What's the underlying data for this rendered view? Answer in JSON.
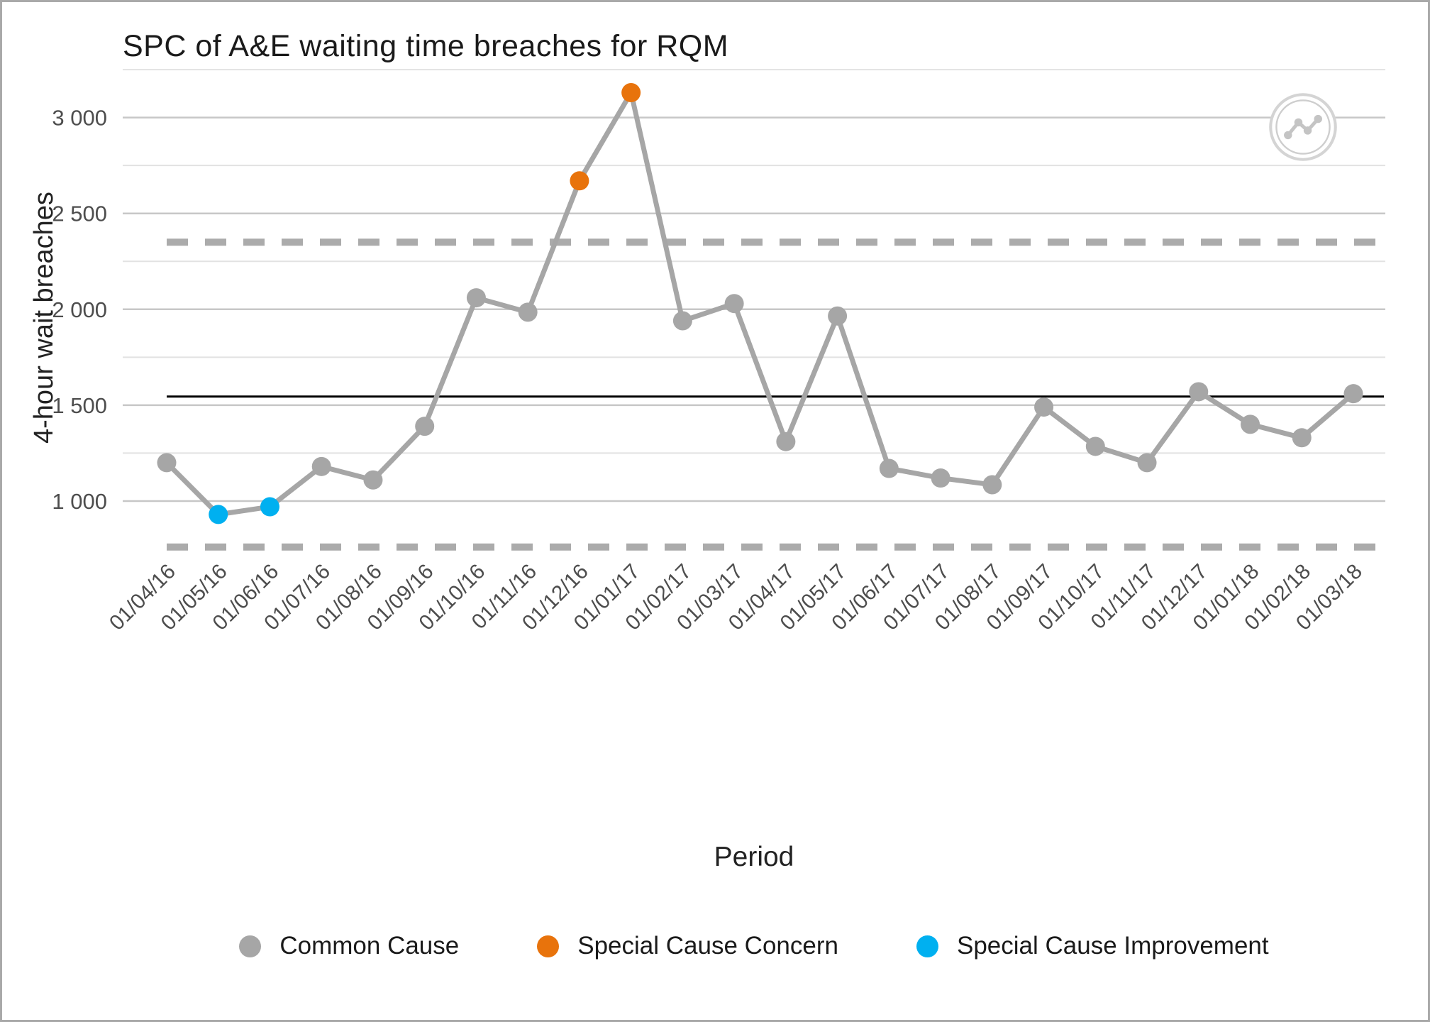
{
  "window": {
    "background": "#ffffff",
    "border_color": "#a9a9a9"
  },
  "chart_data": {
    "type": "line",
    "subtype": "spc-control-chart",
    "title": "SPC of A&E waiting time breaches for RQM",
    "xlabel": "Period",
    "ylabel": "4-hour wait breaches",
    "ylim": [
      700,
      3280
    ],
    "yticks": [
      1000,
      1500,
      2000,
      2500,
      3000
    ],
    "ytick_labels": [
      "1 000",
      "1 500",
      "2 000",
      "2 500",
      "3 000"
    ],
    "yticks_minor": [
      1250,
      1750,
      2250,
      2750,
      3250
    ],
    "grid": true,
    "legend_position": "bottom",
    "categories": [
      "01/04/16",
      "01/05/16",
      "01/06/16",
      "01/07/16",
      "01/08/16",
      "01/09/16",
      "01/10/16",
      "01/11/16",
      "01/12/16",
      "01/01/17",
      "01/02/17",
      "01/03/17",
      "01/04/17",
      "01/05/17",
      "01/06/17",
      "01/07/17",
      "01/08/17",
      "01/09/17",
      "01/10/17",
      "01/11/17",
      "01/12/17",
      "01/01/18",
      "01/02/18",
      "01/03/18"
    ],
    "values": [
      1200,
      930,
      970,
      1180,
      1110,
      1390,
      2060,
      1985,
      2670,
      3130,
      1940,
      2030,
      1310,
      1965,
      1170,
      1120,
      1085,
      1490,
      1285,
      1200,
      1570,
      1400,
      1330,
      1560
    ],
    "point_types": [
      "common",
      "improvement",
      "improvement",
      "common",
      "common",
      "common",
      "common",
      "common",
      "concern",
      "concern",
      "common",
      "common",
      "common",
      "common",
      "common",
      "common",
      "common",
      "common",
      "common",
      "common",
      "common",
      "common",
      "common",
      "common"
    ],
    "center_line": 1545,
    "upper_control_limit": 2350,
    "lower_control_limit": 760,
    "legend": [
      {
        "label": "Common Cause",
        "type": "common",
        "color": "#a6a6a6"
      },
      {
        "label": "Special Cause Concern",
        "type": "concern",
        "color": "#e8730c"
      },
      {
        "label": "Special Cause Improvement",
        "type": "improvement",
        "color": "#00b0f0"
      }
    ],
    "colors": {
      "common": "#a6a6a6",
      "concern": "#e8730c",
      "improvement": "#00b0f0",
      "series_line": "#a6a6a6",
      "center_line": "#000000",
      "control_limit": "#ababab",
      "gridline_major": "#c7c7c7",
      "gridline_minor": "#e2e2e2",
      "tick_text": "#4d4d4d"
    }
  },
  "icon": {
    "name": "spc-logo-icon"
  }
}
